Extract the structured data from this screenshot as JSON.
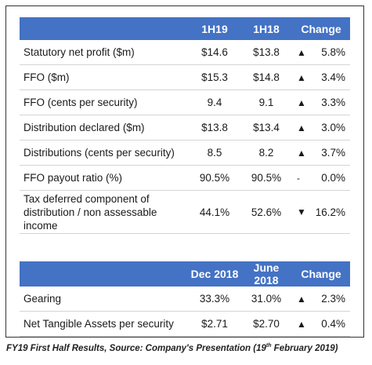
{
  "table1": {
    "headers": [
      "",
      "1H19",
      "1H18",
      "Change"
    ],
    "rows": [
      {
        "label": "Statutory net profit ($m)",
        "v1": "$14.6",
        "v2": "$13.8",
        "arrow": "▲",
        "change": "5.8%"
      },
      {
        "label": "FFO ($m)",
        "v1": "$15.3",
        "v2": "$14.8",
        "arrow": "▲",
        "change": "3.4%"
      },
      {
        "label": "FFO (cents per security)",
        "v1": "9.4",
        "v2": "9.1",
        "arrow": "▲",
        "change": "3.3%"
      },
      {
        "label": "Distribution declared ($m)",
        "v1": "$13.8",
        "v2": "$13.4",
        "arrow": "▲",
        "change": "3.0%"
      },
      {
        "label": "Distributions (cents per security)",
        "v1": "8.5",
        "v2": "8.2",
        "arrow": "▲",
        "change": "3.7%"
      },
      {
        "label": "FFO payout ratio (%)",
        "v1": "90.5%",
        "v2": "90.5%",
        "arrow": "-",
        "change": "0.0%"
      },
      {
        "label": "Tax deferred component of distribution / non assessable income",
        "v1": "44.1%",
        "v2": "52.6%",
        "arrow": "▼",
        "change": "16.2%"
      }
    ]
  },
  "table2": {
    "headers": [
      "",
      "Dec 2018",
      "June 2018",
      "Change"
    ],
    "rows": [
      {
        "label": "Gearing",
        "v1": "33.3%",
        "v2": "31.0%",
        "arrow": "▲",
        "change": "2.3%"
      },
      {
        "label": "Net Tangible Assets per security",
        "v1": "$2.71",
        "v2": "$2.70",
        "arrow": "▲",
        "change": "0.4%"
      }
    ]
  },
  "caption": {
    "pre": "FY19 First Half Results, Source: Company's Presentation (19",
    "sup": "th",
    "post": " February 2019)"
  },
  "colors": {
    "header_bg": "#4472c4",
    "header_text": "#ffffff",
    "row_rule": "#d4d4d4"
  }
}
